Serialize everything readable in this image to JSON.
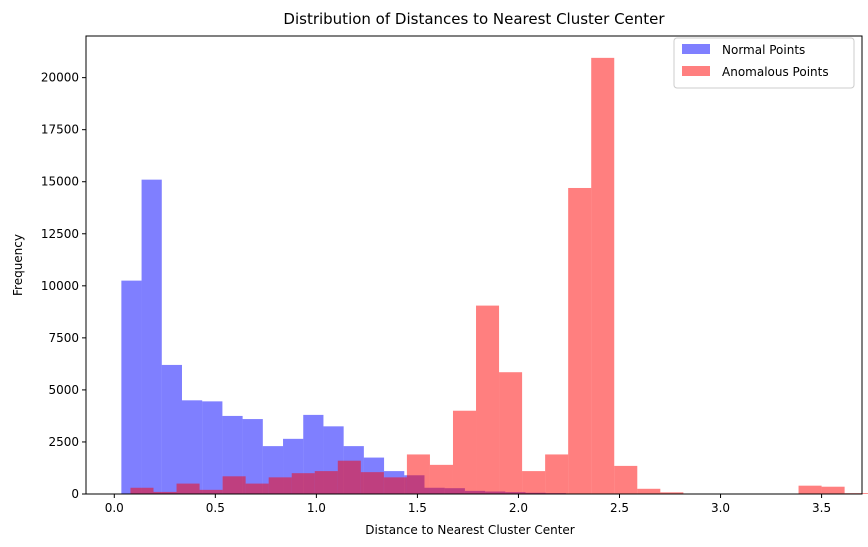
{
  "chart_data": {
    "type": "histogram",
    "title": "Distribution of Distances to Nearest Cluster Center",
    "xlabel": "Distance to Nearest Cluster Center",
    "ylabel": "Frequency",
    "xlim": [
      -0.14,
      3.7
    ],
    "ylim": [
      0,
      22000
    ],
    "xticks": [
      0.0,
      0.5,
      1.0,
      1.5,
      2.0,
      2.5,
      3.0,
      3.5
    ],
    "xtick_labels": [
      "0.0",
      "0.5",
      "1.0",
      "1.5",
      "2.0",
      "2.5",
      "3.0",
      "3.5"
    ],
    "yticks": [
      0,
      2500,
      5000,
      7500,
      10000,
      12500,
      15000,
      17500,
      20000
    ],
    "ytick_labels": [
      "0",
      "2500",
      "5000",
      "7500",
      "10000",
      "12500",
      "15000",
      "17500",
      "20000"
    ],
    "grid": false,
    "legend_position": "top-right",
    "series": [
      {
        "name": "Normal Points",
        "color": "#0000ff",
        "alpha": 0.5,
        "bin_start": 0.035,
        "bin_width": 0.1,
        "values": [
          10250,
          15100,
          6200,
          4500,
          4450,
          3750,
          3600,
          2300,
          2650,
          3800,
          3250,
          2300,
          1750,
          1100,
          900,
          300,
          280,
          150,
          120,
          90,
          60,
          40,
          20,
          10,
          0,
          0,
          0,
          0,
          0,
          0,
          0,
          0,
          0,
          0,
          0
        ]
      },
      {
        "name": "Anomalous Points",
        "color": "#ff0000",
        "alpha": 0.5,
        "bin_start": 0.08,
        "bin_width": 0.114,
        "values": [
          300,
          100,
          500,
          200,
          850,
          500,
          800,
          1000,
          1100,
          1600,
          1050,
          800,
          1900,
          1400,
          4000,
          9050,
          5850,
          1100,
          1900,
          14700,
          20950,
          1350,
          250,
          80,
          0,
          0,
          0,
          0,
          0,
          400,
          350,
          40,
          40,
          30,
          10
        ]
      }
    ]
  }
}
